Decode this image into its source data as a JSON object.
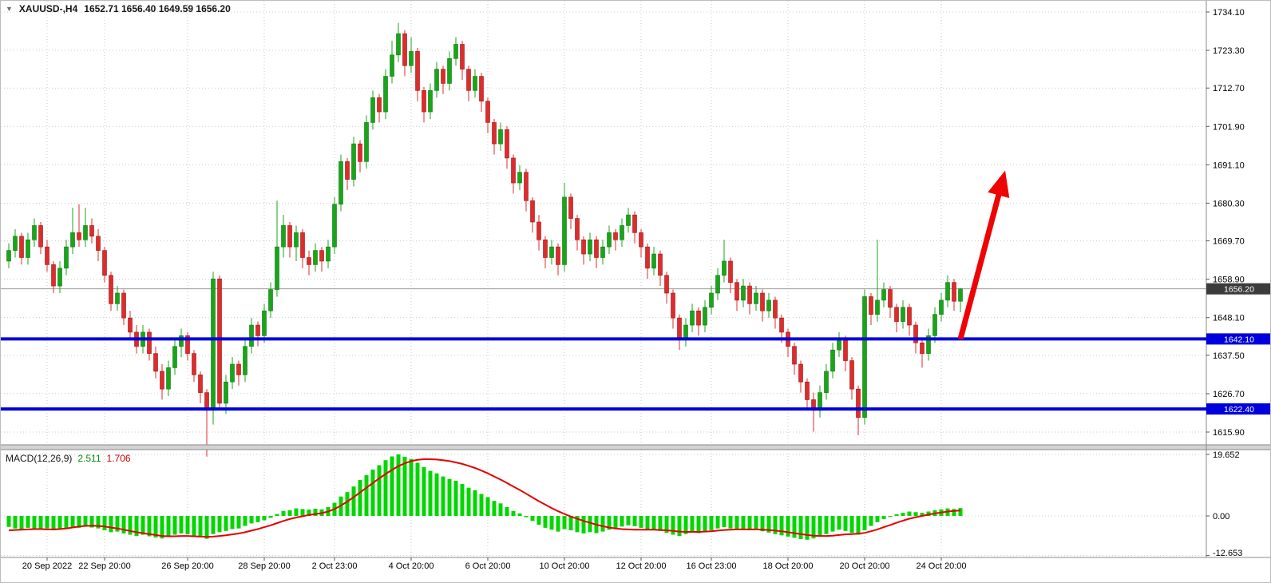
{
  "header": {
    "dropdown_icon": "▼",
    "symbol": "XAUUSD-,H4",
    "ohlc": "1652.71 1656.40 1649.59 1656.20"
  },
  "chart_data": {
    "type": "candlestick",
    "symbol": "XAUUSD",
    "timeframe": "H4",
    "price_axis_ticks": [
      1734.1,
      1723.3,
      1712.7,
      1701.9,
      1691.1,
      1680.3,
      1669.7,
      1658.9,
      1648.1,
      1637.5,
      1626.7,
      1615.9
    ],
    "current_price": {
      "value": 1656.2,
      "label": "1656.20"
    },
    "hlines": [
      {
        "price": 1642.1,
        "label": "1642.10"
      },
      {
        "price": 1622.4,
        "label": "1622.40"
      }
    ],
    "time_axis": [
      {
        "label": "20 Sep 2022",
        "i": 6
      },
      {
        "label": "22 Sep 20:00",
        "i": 15
      },
      {
        "label": "26 Sep 20:00",
        "i": 28
      },
      {
        "label": "28 Sep 20:00",
        "i": 40
      },
      {
        "label": "2 Oct 23:00",
        "i": 51
      },
      {
        "label": "4 Oct 20:00",
        "i": 63
      },
      {
        "label": "6 Oct 20:00",
        "i": 75
      },
      {
        "label": "10 Oct 20:00",
        "i": 87
      },
      {
        "label": "12 Oct 20:00",
        "i": 99
      },
      {
        "label": "16 Oct 23:00",
        "i": 110
      },
      {
        "label": "18 Oct 20:00",
        "i": 122
      },
      {
        "label": "20 Oct 20:00",
        "i": 134
      },
      {
        "label": "24 Oct 20:00",
        "i": 146
      }
    ],
    "candles": [
      [
        1664,
        1669,
        1662,
        1667
      ],
      [
        1667,
        1673,
        1665,
        1671
      ],
      [
        1671,
        1672,
        1663,
        1665
      ],
      [
        1665,
        1672,
        1663,
        1670
      ],
      [
        1670,
        1676,
        1668,
        1674
      ],
      [
        1674,
        1675,
        1666,
        1668
      ],
      [
        1668,
        1670,
        1661,
        1663
      ],
      [
        1663,
        1664,
        1655,
        1657
      ],
      [
        1657,
        1664,
        1655,
        1662
      ],
      [
        1662,
        1670,
        1660,
        1668
      ],
      [
        1668,
        1679,
        1666,
        1672
      ],
      [
        1672,
        1680,
        1668,
        1670
      ],
      [
        1670,
        1679,
        1668,
        1674
      ],
      [
        1674,
        1676,
        1669,
        1671
      ],
      [
        1671,
        1673,
        1664,
        1667
      ],
      [
        1667,
        1668,
        1658,
        1660
      ],
      [
        1660,
        1661,
        1650,
        1652
      ],
      [
        1652,
        1657,
        1650,
        1655
      ],
      [
        1655,
        1656,
        1646,
        1648
      ],
      [
        1648,
        1650,
        1642,
        1644
      ],
      [
        1644,
        1646,
        1638,
        1640
      ],
      [
        1640,
        1646,
        1638,
        1644
      ],
      [
        1644,
        1645,
        1636,
        1638
      ],
      [
        1638,
        1640,
        1631,
        1633
      ],
      [
        1633,
        1635,
        1625,
        1628
      ],
      [
        1628,
        1636,
        1626,
        1634
      ],
      [
        1634,
        1642,
        1632,
        1640
      ],
      [
        1640,
        1645,
        1637,
        1643
      ],
      [
        1643,
        1644,
        1636,
        1638
      ],
      [
        1638,
        1639,
        1630,
        1632
      ],
      [
        1632,
        1633,
        1624,
        1627
      ],
      [
        1627,
        1628,
        1609,
        1622
      ],
      [
        1622,
        1661,
        1618,
        1659
      ],
      [
        1659,
        1660,
        1622,
        1624
      ],
      [
        1624,
        1632,
        1621,
        1630
      ],
      [
        1630,
        1637,
        1628,
        1635
      ],
      [
        1635,
        1636,
        1629,
        1632
      ],
      [
        1632,
        1642,
        1630,
        1640
      ],
      [
        1640,
        1648,
        1638,
        1646
      ],
      [
        1646,
        1647,
        1640,
        1643
      ],
      [
        1643,
        1652,
        1641,
        1650
      ],
      [
        1650,
        1658,
        1648,
        1656
      ],
      [
        1656,
        1681,
        1654,
        1668
      ],
      [
        1668,
        1677,
        1665,
        1674
      ],
      [
        1674,
        1675,
        1665,
        1668
      ],
      [
        1668,
        1674,
        1664,
        1672
      ],
      [
        1672,
        1673,
        1662,
        1665
      ],
      [
        1665,
        1667,
        1660,
        1663
      ],
      [
        1663,
        1669,
        1661,
        1667
      ],
      [
        1667,
        1668,
        1661,
        1664
      ],
      [
        1664,
        1670,
        1662,
        1668
      ],
      [
        1668,
        1682,
        1666,
        1680
      ],
      [
        1680,
        1694,
        1678,
        1692
      ],
      [
        1692,
        1693,
        1684,
        1687
      ],
      [
        1687,
        1699,
        1685,
        1697
      ],
      [
        1697,
        1698,
        1689,
        1692
      ],
      [
        1692,
        1705,
        1690,
        1703
      ],
      [
        1703,
        1712,
        1701,
        1710
      ],
      [
        1710,
        1711,
        1703,
        1706
      ],
      [
        1706,
        1718,
        1704,
        1716
      ],
      [
        1716,
        1726,
        1714,
        1722
      ],
      [
        1722,
        1731,
        1720,
        1728
      ],
      [
        1728,
        1729,
        1716,
        1719
      ],
      [
        1719,
        1727,
        1717,
        1723
      ],
      [
        1723,
        1724,
        1709,
        1712
      ],
      [
        1712,
        1713,
        1703,
        1706
      ],
      [
        1706,
        1714,
        1704,
        1712
      ],
      [
        1712,
        1720,
        1710,
        1718
      ],
      [
        1718,
        1719,
        1711,
        1714
      ],
      [
        1714,
        1723,
        1712,
        1721
      ],
      [
        1721,
        1727,
        1719,
        1725
      ],
      [
        1725,
        1726,
        1715,
        1718
      ],
      [
        1718,
        1719,
        1709,
        1712
      ],
      [
        1712,
        1718,
        1710,
        1716
      ],
      [
        1716,
        1717,
        1706,
        1709
      ],
      [
        1709,
        1710,
        1700,
        1703
      ],
      [
        1703,
        1704,
        1694,
        1697
      ],
      [
        1697,
        1703,
        1695,
        1701
      ],
      [
        1701,
        1702,
        1690,
        1693
      ],
      [
        1693,
        1694,
        1683,
        1686
      ],
      [
        1686,
        1691,
        1684,
        1689
      ],
      [
        1689,
        1690,
        1678,
        1681
      ],
      [
        1681,
        1682,
        1672,
        1675
      ],
      [
        1675,
        1677,
        1667,
        1670
      ],
      [
        1670,
        1671,
        1662,
        1665
      ],
      [
        1665,
        1670,
        1663,
        1668
      ],
      [
        1668,
        1669,
        1660,
        1663
      ],
      [
        1663,
        1686,
        1661,
        1682
      ],
      [
        1682,
        1683,
        1673,
        1676
      ],
      [
        1676,
        1677,
        1667,
        1670
      ],
      [
        1670,
        1671,
        1663,
        1666
      ],
      [
        1666,
        1672,
        1664,
        1670
      ],
      [
        1670,
        1671,
        1662,
        1665
      ],
      [
        1665,
        1670,
        1663,
        1668
      ],
      [
        1668,
        1674,
        1666,
        1672
      ],
      [
        1672,
        1673,
        1667,
        1670
      ],
      [
        1670,
        1676,
        1668,
        1674
      ],
      [
        1674,
        1679,
        1672,
        1677
      ],
      [
        1677,
        1678,
        1669,
        1672
      ],
      [
        1672,
        1673,
        1665,
        1668
      ],
      [
        1668,
        1669,
        1659,
        1662
      ],
      [
        1662,
        1668,
        1660,
        1666
      ],
      [
        1666,
        1667,
        1657,
        1660
      ],
      [
        1660,
        1661,
        1652,
        1655
      ],
      [
        1655,
        1656,
        1645,
        1648
      ],
      [
        1648,
        1649,
        1639,
        1642
      ],
      [
        1642,
        1648,
        1640,
        1646
      ],
      [
        1646,
        1652,
        1644,
        1650
      ],
      [
        1650,
        1651,
        1643,
        1646
      ],
      [
        1646,
        1653,
        1644,
        1651
      ],
      [
        1651,
        1657,
        1649,
        1655
      ],
      [
        1655,
        1662,
        1653,
        1660
      ],
      [
        1660,
        1670,
        1658,
        1664
      ],
      [
        1664,
        1665,
        1655,
        1658
      ],
      [
        1658,
        1659,
        1650,
        1653
      ],
      [
        1653,
        1659,
        1651,
        1657
      ],
      [
        1657,
        1658,
        1649,
        1652
      ],
      [
        1652,
        1657,
        1650,
        1655
      ],
      [
        1655,
        1656,
        1647,
        1650
      ],
      [
        1650,
        1655,
        1648,
        1653
      ],
      [
        1653,
        1654,
        1645,
        1648
      ],
      [
        1648,
        1649,
        1641,
        1644
      ],
      [
        1644,
        1645,
        1637,
        1640
      ],
      [
        1640,
        1641,
        1632,
        1635
      ],
      [
        1635,
        1636,
        1627,
        1630
      ],
      [
        1630,
        1631,
        1622,
        1625
      ],
      [
        1625,
        1627,
        1616,
        1622
      ],
      [
        1622,
        1629,
        1620,
        1627
      ],
      [
        1627,
        1635,
        1625,
        1633
      ],
      [
        1633,
        1641,
        1631,
        1639
      ],
      [
        1639,
        1644,
        1637,
        1642
      ],
      [
        1642,
        1643,
        1633,
        1636
      ],
      [
        1636,
        1637,
        1625,
        1628
      ],
      [
        1628,
        1629,
        1615,
        1620
      ],
      [
        1620,
        1656,
        1618,
        1654
      ],
      [
        1654,
        1655,
        1646,
        1649
      ],
      [
        1649,
        1670,
        1647,
        1653
      ],
      [
        1653,
        1658,
        1651,
        1656
      ],
      [
        1656,
        1657,
        1648,
        1651
      ],
      [
        1651,
        1652,
        1644,
        1647
      ],
      [
        1647,
        1653,
        1645,
        1651
      ],
      [
        1651,
        1652,
        1643,
        1646
      ],
      [
        1646,
        1647,
        1638,
        1641
      ],
      [
        1641,
        1642,
        1634,
        1638
      ],
      [
        1638,
        1645,
        1636,
        1643
      ],
      [
        1643,
        1651,
        1641,
        1649
      ],
      [
        1649,
        1655,
        1647,
        1653
      ],
      [
        1653,
        1660,
        1651,
        1658
      ],
      [
        1658,
        1659,
        1650,
        1652.7
      ],
      [
        1652.7,
        1656.4,
        1649.6,
        1656.2
      ]
    ],
    "arrow": {
      "from_index": 149,
      "from_price": 1642.1,
      "to_index": 156,
      "to_price": 1689.5
    },
    "macd": {
      "label": "MACD(12,26,9)",
      "main_value": "2.511",
      "signal_value": "1.706",
      "axis_ticks": [
        {
          "v": 19.652,
          "label": "19.652"
        },
        {
          "v": 0,
          "label": "0.00"
        },
        {
          "v": -12.653,
          "label": "-12.653"
        }
      ],
      "histogram": [
        -3.5,
        -4.0,
        -4.2,
        -3.8,
        -4.1,
        -4.4,
        -4.0,
        -4.6,
        -4.3,
        -3.9,
        -3.6,
        -3.8,
        -3.4,
        -3.7,
        -4.0,
        -4.6,
        -5.2,
        -5.0,
        -5.6,
        -6.0,
        -6.4,
        -6.0,
        -6.5,
        -6.9,
        -7.2,
        -6.6,
        -6.0,
        -5.6,
        -5.9,
        -6.3,
        -6.8,
        -7.3,
        -5.8,
        -5.2,
        -4.8,
        -4.2,
        -4.0,
        -3.2,
        -2.4,
        -2.0,
        -1.4,
        -0.6,
        0.6,
        1.6,
        1.8,
        2.4,
        2.2,
        2.0,
        2.3,
        2.1,
        2.8,
        4.2,
        6.2,
        7.6,
        9.4,
        11.5,
        13.0,
        14.8,
        16.2,
        17.8,
        19.0,
        19.65,
        18.9,
        18.2,
        17.0,
        15.6,
        14.4,
        13.6,
        12.6,
        11.8,
        11.2,
        10.2,
        9.0,
        8.2,
        7.0,
        6.0,
        4.8,
        4.0,
        2.8,
        1.6,
        0.8,
        -0.4,
        -1.6,
        -2.8,
        -3.8,
        -4.4,
        -5.0,
        -4.2,
        -4.6,
        -5.2,
        -5.6,
        -5.2,
        -5.5,
        -5.0,
        -4.4,
        -4.0,
        -3.4,
        -3.0,
        -3.3,
        -3.8,
        -4.4,
        -4.2,
        -4.8,
        -5.4,
        -6.0,
        -6.4,
        -5.8,
        -5.2,
        -5.5,
        -5.0,
        -4.6,
        -4.0,
        -3.6,
        -4.0,
        -4.4,
        -4.2,
        -4.6,
        -4.4,
        -4.9,
        -5.3,
        -5.8,
        -6.2,
        -6.6,
        -7.0,
        -7.4,
        -7.6,
        -7.2,
        -6.6,
        -5.8,
        -5.0,
        -4.4,
        -4.8,
        -5.4,
        -6.0,
        -4.6,
        -3.2,
        -2.0,
        -1.0,
        -0.2,
        0.5,
        1.0,
        1.4,
        1.2,
        1.0,
        1.4,
        1.8,
        2.1,
        2.4,
        2.2,
        2.511
      ],
      "signal": [
        -4.6,
        -4.5,
        -4.4,
        -4.3,
        -4.2,
        -4.2,
        -4.3,
        -4.3,
        -4.2,
        -4.0,
        -3.7,
        -3.4,
        -3.2,
        -3.1,
        -3.2,
        -3.4,
        -3.7,
        -4.0,
        -4.4,
        -4.8,
        -5.2,
        -5.5,
        -5.8,
        -6.1,
        -6.4,
        -6.5,
        -6.5,
        -6.4,
        -6.4,
        -6.5,
        -6.6,
        -6.7,
        -6.6,
        -6.4,
        -6.2,
        -5.9,
        -5.6,
        -5.2,
        -4.7,
        -4.2,
        -3.6,
        -3.0,
        -2.3,
        -1.6,
        -1.0,
        -0.5,
        -0.1,
        0.3,
        0.6,
        0.9,
        1.4,
        2.2,
        3.3,
        4.6,
        6.0,
        7.5,
        9.0,
        10.5,
        12.0,
        13.4,
        14.7,
        15.9,
        16.8,
        17.5,
        17.9,
        18.1,
        18.1,
        18.0,
        17.8,
        17.5,
        17.1,
        16.6,
        16.0,
        15.3,
        14.5,
        13.6,
        12.6,
        11.6,
        10.5,
        9.4,
        8.3,
        7.1,
        5.9,
        4.7,
        3.6,
        2.5,
        1.5,
        0.6,
        -0.2,
        -0.9,
        -1.6,
        -2.2,
        -2.8,
        -3.3,
        -3.7,
        -4.0,
        -4.2,
        -4.3,
        -4.4,
        -4.4,
        -4.4,
        -4.4,
        -4.5,
        -4.6,
        -4.8,
        -5.0,
        -5.1,
        -5.1,
        -5.1,
        -5.0,
        -4.9,
        -4.7,
        -4.5,
        -4.4,
        -4.3,
        -4.3,
        -4.3,
        -4.3,
        -4.4,
        -4.5,
        -4.7,
        -4.9,
        -5.2,
        -5.5,
        -5.8,
        -6.1,
        -6.3,
        -6.4,
        -6.4,
        -6.3,
        -6.1,
        -5.9,
        -5.8,
        -5.7,
        -5.4,
        -4.9,
        -4.3,
        -3.6,
        -2.9,
        -2.2,
        -1.5,
        -0.9,
        -0.4,
        0.0,
        0.4,
        0.8,
        1.1,
        1.4,
        1.6,
        1.706
      ]
    },
    "colors": {
      "up": "#1aa41a",
      "up_border": "#0c7a0c",
      "down": "#dd2c2c",
      "down_border": "#9e1414",
      "macd_bar": "#00d600",
      "macd_signal": "#e60000",
      "hline": "#0000dd",
      "current_marker_bg": "#3c3c3c",
      "arrow": "#ee0404",
      "grid": "#c9c9c9"
    }
  }
}
